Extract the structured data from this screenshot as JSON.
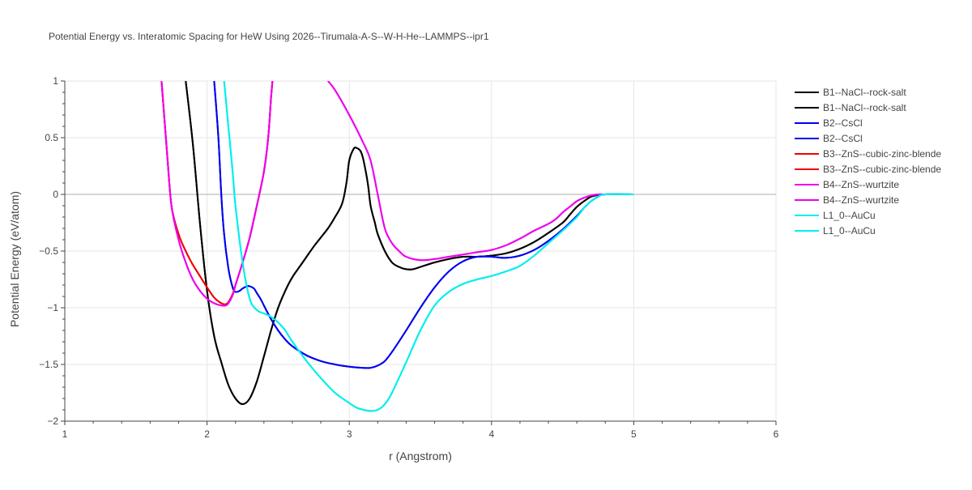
{
  "chart_data": {
    "type": "line",
    "title": "Potential Energy vs. Interatomic Spacing for HeW Using 2026--Tirumala-A-S--W-H-He--LAMMPS--ipr1",
    "xlabel": "r (Angstrom)",
    "ylabel": "Potential Energy (eV/atom)",
    "xlim": [
      1,
      6
    ],
    "ylim": [
      -2,
      1
    ],
    "xticks": [
      1,
      2,
      3,
      4,
      5,
      6
    ],
    "yticks": [
      -2,
      -1.5,
      -1,
      -0.5,
      0,
      0.5,
      1
    ],
    "xtick_labels": [
      "1",
      "2",
      "3",
      "4",
      "5",
      "6"
    ],
    "ytick_labels": [
      "−2",
      "−1.5",
      "−1",
      "−0.5",
      "0",
      "0.5",
      "1"
    ],
    "grid": true,
    "legend_position": "right",
    "series": [
      {
        "name": "B1--NaCl--rock-salt",
        "color": "#000000",
        "x": [
          1.85,
          1.9,
          1.95,
          2.0,
          2.05,
          2.1,
          2.15,
          2.2,
          2.25,
          2.3,
          2.35,
          2.4,
          2.45,
          2.5,
          2.55,
          2.6,
          2.65,
          2.7,
          2.75,
          2.8,
          2.85,
          2.9,
          2.95,
          2.98,
          3.0,
          3.03,
          3.05,
          3.08,
          3.1,
          3.13,
          3.15,
          3.18,
          3.2,
          3.25,
          3.3,
          3.35,
          3.4,
          3.45,
          3.5,
          3.6,
          3.7,
          3.8,
          3.9,
          4.0,
          4.1,
          4.2,
          4.3,
          4.4,
          4.5,
          4.55,
          4.6,
          4.65,
          4.7,
          4.75,
          4.8,
          4.9,
          5.0,
          5.5,
          6.0
        ],
        "y": [
          1.0,
          0.45,
          -0.25,
          -0.85,
          -1.25,
          -1.48,
          -1.68,
          -1.8,
          -1.85,
          -1.8,
          -1.65,
          -1.43,
          -1.2,
          -1.0,
          -0.85,
          -0.73,
          -0.64,
          -0.55,
          -0.46,
          -0.38,
          -0.3,
          -0.2,
          -0.08,
          0.1,
          0.3,
          0.4,
          0.41,
          0.38,
          0.3,
          0.1,
          -0.1,
          -0.25,
          -0.35,
          -0.5,
          -0.6,
          -0.64,
          -0.66,
          -0.66,
          -0.64,
          -0.6,
          -0.57,
          -0.55,
          -0.55,
          -0.54,
          -0.52,
          -0.48,
          -0.42,
          -0.34,
          -0.25,
          -0.18,
          -0.11,
          -0.06,
          -0.02,
          -0.005,
          0.0,
          0.0,
          0.0,
          0.0,
          0.0
        ]
      },
      {
        "name": "B1--NaCl--rock-salt",
        "color": "#000000",
        "x": [
          1.85,
          1.9,
          1.95,
          2.0,
          2.05,
          2.1,
          2.15,
          2.2,
          2.25,
          2.3,
          2.35,
          2.4,
          2.45,
          2.5,
          2.55,
          2.6,
          2.65,
          2.7,
          2.75,
          2.8,
          2.85,
          2.9,
          2.95,
          2.98,
          3.0,
          3.03,
          3.05,
          3.08,
          3.1,
          3.13,
          3.15,
          3.18,
          3.2,
          3.25,
          3.3,
          3.35,
          3.4,
          3.45,
          3.5,
          3.6,
          3.7,
          3.8,
          3.9,
          4.0,
          4.1,
          4.2,
          4.3,
          4.4,
          4.5,
          4.55,
          4.6,
          4.65,
          4.7,
          4.75,
          4.8,
          4.9,
          5.0,
          5.5,
          6.0
        ],
        "y": [
          1.0,
          0.45,
          -0.25,
          -0.85,
          -1.25,
          -1.48,
          -1.68,
          -1.8,
          -1.85,
          -1.8,
          -1.65,
          -1.43,
          -1.2,
          -1.0,
          -0.85,
          -0.73,
          -0.64,
          -0.55,
          -0.46,
          -0.38,
          -0.3,
          -0.2,
          -0.08,
          0.1,
          0.3,
          0.4,
          0.41,
          0.38,
          0.3,
          0.1,
          -0.1,
          -0.25,
          -0.35,
          -0.5,
          -0.6,
          -0.64,
          -0.66,
          -0.66,
          -0.64,
          -0.6,
          -0.57,
          -0.55,
          -0.55,
          -0.54,
          -0.52,
          -0.48,
          -0.42,
          -0.34,
          -0.25,
          -0.18,
          -0.11,
          -0.06,
          -0.02,
          -0.005,
          0.0,
          0.0,
          0.0,
          0.0,
          0.0
        ]
      },
      {
        "name": "B2--CsCl",
        "color": "#0000ee",
        "x": [
          2.05,
          2.08,
          2.1,
          2.12,
          2.15,
          2.18,
          2.2,
          2.23,
          2.25,
          2.28,
          2.3,
          2.33,
          2.35,
          2.38,
          2.4,
          2.45,
          2.5,
          2.55,
          2.6,
          2.7,
          2.8,
          2.9,
          3.0,
          3.1,
          3.15,
          3.2,
          3.25,
          3.3,
          3.4,
          3.5,
          3.6,
          3.7,
          3.8,
          3.9,
          4.0,
          4.1,
          4.2,
          4.3,
          4.4,
          4.5,
          4.6,
          4.65,
          4.7,
          4.75,
          4.8,
          5.0,
          6.0
        ],
        "y": [
          1.0,
          0.5,
          0.0,
          -0.35,
          -0.65,
          -0.82,
          -0.86,
          -0.85,
          -0.83,
          -0.81,
          -0.81,
          -0.83,
          -0.87,
          -0.93,
          -0.98,
          -1.1,
          -1.2,
          -1.28,
          -1.34,
          -1.42,
          -1.47,
          -1.5,
          -1.52,
          -1.53,
          -1.53,
          -1.51,
          -1.47,
          -1.39,
          -1.2,
          -1.0,
          -0.82,
          -0.68,
          -0.59,
          -0.55,
          -0.55,
          -0.56,
          -0.54,
          -0.49,
          -0.41,
          -0.31,
          -0.19,
          -0.12,
          -0.06,
          -0.02,
          0.0,
          0.0,
          0.0
        ]
      },
      {
        "name": "B2--CsCl",
        "color": "#0000ee",
        "x": [
          2.05,
          2.08,
          2.1,
          2.12,
          2.15,
          2.18,
          2.2,
          2.23,
          2.25,
          2.28,
          2.3,
          2.33,
          2.35,
          2.38,
          2.4,
          2.45,
          2.5,
          2.55,
          2.6,
          2.7,
          2.8,
          2.9,
          3.0,
          3.1,
          3.15,
          3.2,
          3.25,
          3.3,
          3.4,
          3.5,
          3.6,
          3.7,
          3.8,
          3.9,
          4.0,
          4.1,
          4.2,
          4.3,
          4.4,
          4.5,
          4.6,
          4.65,
          4.7,
          4.75,
          4.8,
          5.0,
          6.0
        ],
        "y": [
          1.0,
          0.5,
          0.0,
          -0.35,
          -0.65,
          -0.82,
          -0.86,
          -0.85,
          -0.83,
          -0.81,
          -0.81,
          -0.83,
          -0.87,
          -0.93,
          -0.98,
          -1.1,
          -1.2,
          -1.28,
          -1.34,
          -1.42,
          -1.47,
          -1.5,
          -1.52,
          -1.53,
          -1.53,
          -1.51,
          -1.47,
          -1.39,
          -1.2,
          -1.0,
          -0.82,
          -0.68,
          -0.59,
          -0.55,
          -0.55,
          -0.56,
          -0.54,
          -0.49,
          -0.41,
          -0.31,
          -0.19,
          -0.12,
          -0.06,
          -0.02,
          0.0,
          0.0,
          0.0
        ]
      },
      {
        "name": "B3--ZnS--cubic-zinc-blende",
        "color": "#ee0000",
        "x": [
          1.68,
          1.72,
          1.75,
          1.8,
          1.85,
          1.9,
          1.95,
          2.0,
          2.05,
          2.1,
          2.13,
          2.15,
          2.18,
          2.2,
          2.25,
          2.3,
          2.35,
          2.4,
          2.43,
          2.45,
          2.46
        ],
        "y": [
          1.0,
          0.35,
          -0.1,
          -0.35,
          -0.5,
          -0.62,
          -0.72,
          -0.82,
          -0.91,
          -0.96,
          -0.97,
          -0.95,
          -0.88,
          -0.8,
          -0.6,
          -0.38,
          -0.1,
          0.2,
          0.5,
          0.85,
          1.0
        ]
      },
      {
        "name": "B3--ZnS--cubic-zinc-blende",
        "color": "#ee0000",
        "x": [
          1.68,
          1.72,
          1.75,
          1.8,
          1.85,
          1.9,
          1.95,
          2.0,
          2.05,
          2.1,
          2.13,
          2.15,
          2.18,
          2.2,
          2.25,
          2.3,
          2.35,
          2.4,
          2.43,
          2.45,
          2.46
        ],
        "y": [
          1.0,
          0.35,
          -0.1,
          -0.35,
          -0.5,
          -0.62,
          -0.72,
          -0.82,
          -0.91,
          -0.96,
          -0.97,
          -0.95,
          -0.88,
          -0.8,
          -0.6,
          -0.38,
          -0.1,
          0.2,
          0.5,
          0.85,
          1.0
        ]
      },
      {
        "name": "B4--ZnS--wurtzite",
        "color": "#ee00ee",
        "x": [
          1.68,
          1.72,
          1.75,
          1.8,
          1.85,
          1.9,
          1.95,
          2.0,
          2.05,
          2.1,
          2.13,
          2.15,
          2.18,
          2.2,
          2.25,
          2.3,
          2.35,
          2.4,
          2.43,
          2.45,
          2.46,
          2.85,
          2.9,
          3.0,
          3.1,
          3.15,
          3.2,
          3.25,
          3.3,
          3.35,
          3.4,
          3.5,
          3.6,
          3.7,
          3.8,
          3.9,
          4.0,
          4.1,
          4.2,
          4.3,
          4.4,
          4.45,
          4.5,
          4.55,
          4.6,
          4.65,
          4.7,
          4.75,
          4.8,
          5.0,
          6.0
        ],
        "y": [
          1.0,
          0.35,
          -0.1,
          -0.4,
          -0.6,
          -0.75,
          -0.85,
          -0.92,
          -0.96,
          -0.98,
          -0.98,
          -0.96,
          -0.89,
          -0.8,
          -0.6,
          -0.38,
          -0.1,
          0.2,
          0.5,
          0.85,
          1.0,
          1.0,
          0.92,
          0.7,
          0.45,
          0.3,
          0.0,
          -0.3,
          -0.43,
          -0.5,
          -0.55,
          -0.58,
          -0.57,
          -0.55,
          -0.53,
          -0.51,
          -0.49,
          -0.45,
          -0.39,
          -0.32,
          -0.26,
          -0.22,
          -0.16,
          -0.11,
          -0.06,
          -0.03,
          -0.01,
          0.0,
          0.0,
          0.0,
          0.0
        ]
      },
      {
        "name": "B4--ZnS--wurtzite",
        "color": "#ee00ee",
        "x": [
          1.68,
          1.72,
          1.75,
          1.8,
          1.85,
          1.9,
          1.95,
          2.0,
          2.05,
          2.1,
          2.13,
          2.15,
          2.18,
          2.2,
          2.25,
          2.3,
          2.35,
          2.4,
          2.43,
          2.45,
          2.46,
          2.85,
          2.9,
          3.0,
          3.1,
          3.15,
          3.2,
          3.25,
          3.3,
          3.35,
          3.4,
          3.5,
          3.6,
          3.7,
          3.8,
          3.9,
          4.0,
          4.1,
          4.2,
          4.3,
          4.4,
          4.45,
          4.5,
          4.55,
          4.6,
          4.65,
          4.7,
          4.75,
          4.8,
          5.0,
          6.0
        ],
        "y": [
          1.0,
          0.35,
          -0.1,
          -0.4,
          -0.6,
          -0.75,
          -0.85,
          -0.92,
          -0.96,
          -0.98,
          -0.98,
          -0.96,
          -0.89,
          -0.8,
          -0.6,
          -0.38,
          -0.1,
          0.2,
          0.5,
          0.85,
          1.0,
          1.0,
          0.92,
          0.7,
          0.45,
          0.3,
          0.0,
          -0.3,
          -0.43,
          -0.5,
          -0.55,
          -0.58,
          -0.57,
          -0.55,
          -0.53,
          -0.51,
          -0.49,
          -0.45,
          -0.39,
          -0.32,
          -0.26,
          -0.22,
          -0.16,
          -0.11,
          -0.06,
          -0.03,
          -0.01,
          0.0,
          0.0,
          0.0,
          0.0
        ]
      },
      {
        "name": "L1_0--AuCu",
        "color": "#00eeee",
        "x": [
          2.12,
          2.15,
          2.18,
          2.2,
          2.25,
          2.3,
          2.35,
          2.4,
          2.45,
          2.5,
          2.55,
          2.6,
          2.7,
          2.8,
          2.9,
          3.0,
          3.05,
          3.1,
          3.15,
          3.2,
          3.25,
          3.3,
          3.4,
          3.5,
          3.6,
          3.7,
          3.8,
          3.9,
          4.0,
          4.1,
          4.2,
          4.3,
          4.4,
          4.5,
          4.6,
          4.65,
          4.7,
          4.75,
          4.8,
          5.0,
          6.0
        ],
        "y": [
          1.0,
          0.6,
          0.2,
          -0.1,
          -0.6,
          -0.92,
          -1.02,
          -1.05,
          -1.08,
          -1.13,
          -1.2,
          -1.3,
          -1.47,
          -1.62,
          -1.75,
          -1.84,
          -1.88,
          -1.9,
          -1.91,
          -1.9,
          -1.85,
          -1.75,
          -1.48,
          -1.2,
          -0.98,
          -0.86,
          -0.79,
          -0.75,
          -0.72,
          -0.68,
          -0.63,
          -0.54,
          -0.43,
          -0.32,
          -0.2,
          -0.12,
          -0.06,
          -0.02,
          0.0,
          0.0,
          0.0
        ]
      },
      {
        "name": "L1_0--AuCu",
        "color": "#00eeee",
        "x": [
          2.12,
          2.15,
          2.18,
          2.2,
          2.25,
          2.3,
          2.35,
          2.4,
          2.45,
          2.5,
          2.55,
          2.6,
          2.7,
          2.8,
          2.9,
          3.0,
          3.05,
          3.1,
          3.15,
          3.2,
          3.25,
          3.3,
          3.4,
          3.5,
          3.6,
          3.7,
          3.8,
          3.9,
          4.0,
          4.1,
          4.2,
          4.3,
          4.4,
          4.5,
          4.6,
          4.65,
          4.7,
          4.75,
          4.8,
          5.0,
          6.0
        ],
        "y": [
          1.0,
          0.6,
          0.2,
          -0.1,
          -0.6,
          -0.92,
          -1.02,
          -1.05,
          -1.08,
          -1.13,
          -1.2,
          -1.3,
          -1.47,
          -1.62,
          -1.75,
          -1.84,
          -1.88,
          -1.9,
          -1.91,
          -1.9,
          -1.85,
          -1.75,
          -1.48,
          -1.2,
          -0.98,
          -0.86,
          -0.79,
          -0.75,
          -0.72,
          -0.68,
          -0.63,
          -0.54,
          -0.43,
          -0.32,
          -0.2,
          -0.12,
          -0.06,
          -0.02,
          0.0,
          0.0,
          0.0
        ]
      }
    ]
  }
}
